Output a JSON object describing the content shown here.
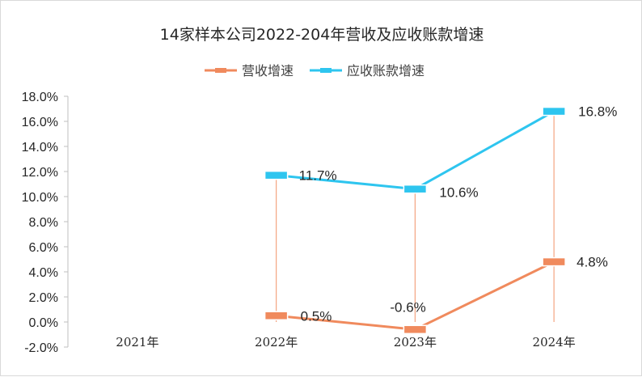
{
  "chart_data": {
    "type": "line",
    "title": "14家样本公司2022-204年营收及应收账款增速",
    "categories": [
      "2021年",
      "2022年",
      "2023年",
      "2024年"
    ],
    "series": [
      {
        "name": "营收增速",
        "color": "#f08a5d",
        "values": [
          null,
          0.5,
          -0.6,
          4.8
        ],
        "labels": [
          "",
          "0.5%",
          "-0.6%",
          "4.8%"
        ]
      },
      {
        "name": "应收账款增速",
        "color": "#2ec5ef",
        "values": [
          null,
          11.7,
          10.6,
          16.8
        ],
        "labels": [
          "",
          "11.7%",
          "10.6%",
          "16.8%"
        ]
      }
    ],
    "yticks": [
      "-2.0%",
      "0.0%",
      "2.0%",
      "4.0%",
      "6.0%",
      "8.0%",
      "10.0%",
      "12.0%",
      "14.0%",
      "16.0%",
      "18.0%"
    ],
    "ylim": [
      -2,
      18
    ],
    "legend_position": "top",
    "grid": false,
    "drop_lines": true
  }
}
